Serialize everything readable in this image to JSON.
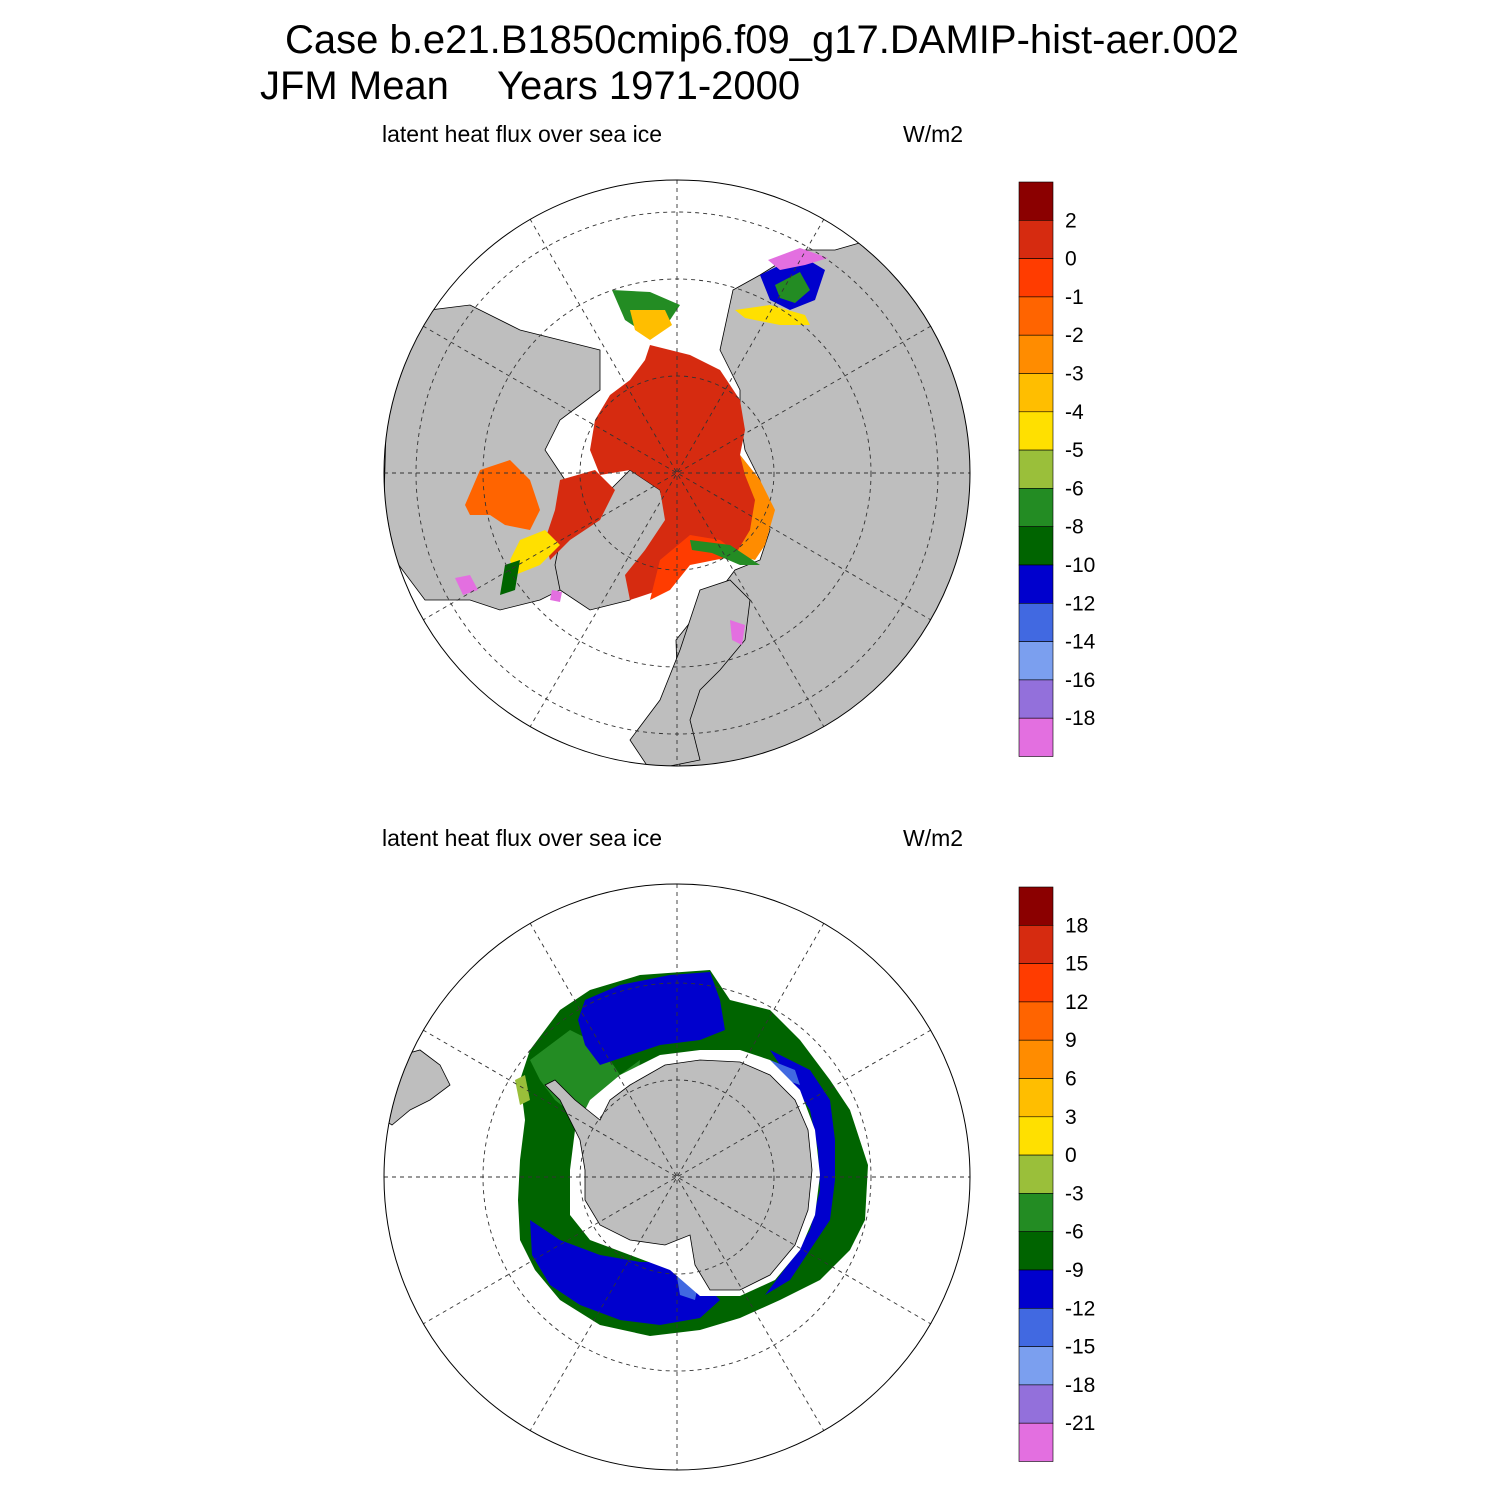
{
  "title": {
    "case": "Case b.e21.B1850cmip6.f09_g17.DAMIP-hist-aer.002",
    "season": "JFM Mean",
    "years": "Years 1971-2000"
  },
  "chart_data": [
    {
      "type": "heatmap",
      "projection": "polar stereographic",
      "hemisphere": "north",
      "title": "latent heat flux over sea ice",
      "units": "W/m2",
      "colorbar": {
        "levels": [
          "2",
          "0",
          "-1",
          "-2",
          "-3",
          "-4",
          "-5",
          "-6",
          "-8",
          "-10",
          "-12",
          "-14",
          "-16",
          "-18"
        ],
        "colors": [
          "#8b0000",
          "#d62b10",
          "#ff3c00",
          "#ff6400",
          "#ff8c00",
          "#ffbe00",
          "#ffe000",
          "#9abf3a",
          "#238c23",
          "#006400",
          "#0000cd",
          "#4169e1",
          "#7b9fef",
          "#9370db",
          "#e36fe0"
        ]
      },
      "land_color": "#bebebe",
      "dominant_values": "interior Arctic ice about 0 to 2; edges -6 to -18"
    },
    {
      "type": "heatmap",
      "projection": "polar stereographic",
      "hemisphere": "south",
      "title": "latent heat flux over sea ice",
      "units": "W/m2",
      "colorbar": {
        "levels": [
          "18",
          "15",
          "12",
          "9",
          "6",
          "3",
          "0",
          "-3",
          "-6",
          "-9",
          "-12",
          "-15",
          "-18",
          "-21"
        ],
        "colors": [
          "#8b0000",
          "#d62b10",
          "#ff3c00",
          "#ff6400",
          "#ff8c00",
          "#ffbe00",
          "#ffe000",
          "#9abf3a",
          "#238c23",
          "#006400",
          "#0000cd",
          "#4169e1",
          "#7b9fef",
          "#9370db",
          "#e36fe0"
        ]
      },
      "land_color": "#bebebe",
      "dominant_values": "ring of -6 to -12 around Antarctica"
    }
  ]
}
